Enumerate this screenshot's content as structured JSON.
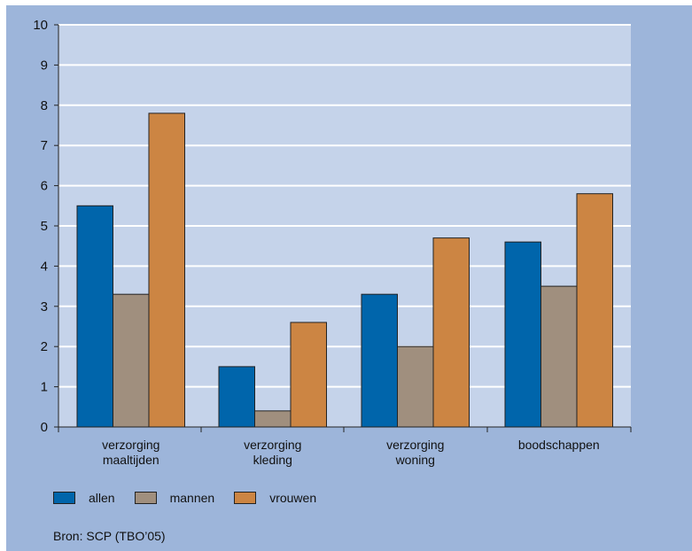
{
  "chart_data": {
    "type": "bar",
    "categories": [
      [
        "verzorging",
        "maaltijden"
      ],
      [
        "verzorging",
        "kleding"
      ],
      [
        "verzorging",
        "woning"
      ],
      [
        "boodschappen"
      ]
    ],
    "series": [
      {
        "name": "allen",
        "values": [
          5.5,
          1.5,
          3.3,
          4.6
        ]
      },
      {
        "name": "mannen",
        "values": [
          3.3,
          0.4,
          2.0,
          3.5
        ]
      },
      {
        "name": "vrouwen",
        "values": [
          7.8,
          2.6,
          4.7,
          5.8
        ]
      }
    ],
    "yticks": [
      "0",
      "1",
      "2",
      "3",
      "4",
      "5",
      "6",
      "7",
      "8",
      "9",
      "10"
    ],
    "ylim": [
      0,
      10
    ],
    "grid": true,
    "legend_position": "bottom",
    "colors": {
      "allen": "#0065ab",
      "mannen": "#a08f7e",
      "vrouwen": "#cc8543",
      "plot_background": "#c5d3ea",
      "frame_background": "#9db5da",
      "gridline": "#ffffff"
    }
  },
  "legend": [
    {
      "label": "allen",
      "color": "#0065ab"
    },
    {
      "label": "mannen",
      "color": "#a08f7e"
    },
    {
      "label": "vrouwen",
      "color": "#cc8543"
    }
  ],
  "source": "Bron: SCP (TBO’05)"
}
